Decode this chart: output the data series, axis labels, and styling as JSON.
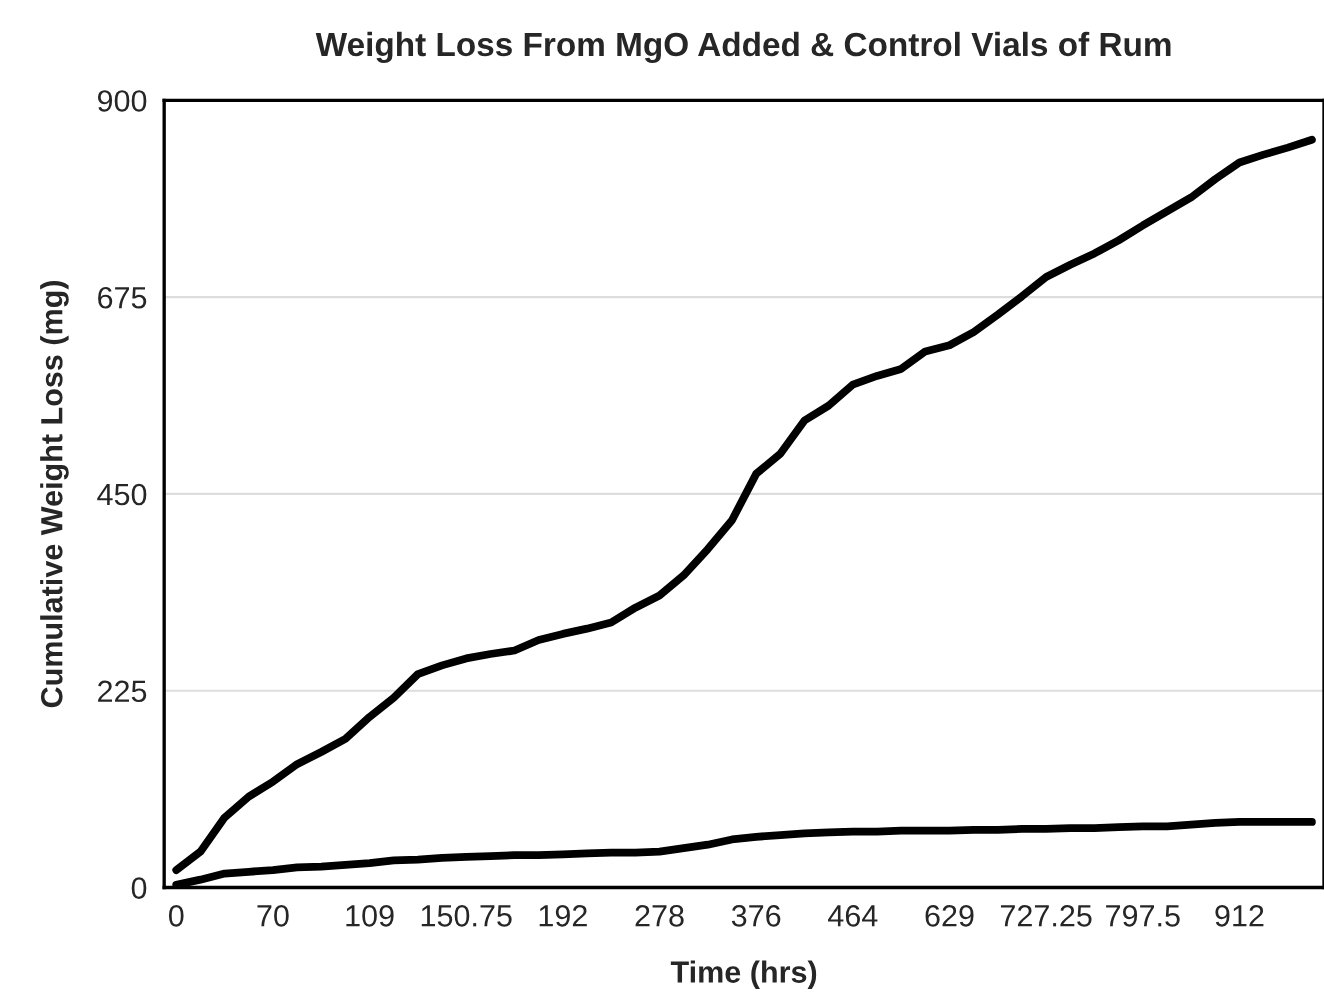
{
  "chart_data": {
    "type": "line",
    "title": "Weight Loss From MgO Added & Control Vials of Rum",
    "xlabel": "Time (hrs)",
    "ylabel": "Cumulative Weight Loss (mg)",
    "categories": [
      "0",
      null,
      null,
      null,
      "70",
      null,
      null,
      null,
      "109",
      null,
      null,
      null,
      "150.75",
      null,
      null,
      null,
      "192",
      null,
      null,
      null,
      "278",
      null,
      null,
      null,
      "376",
      null,
      null,
      null,
      "464",
      null,
      null,
      null,
      "629",
      null,
      null,
      null,
      "727.25",
      null,
      null,
      null,
      "797.5",
      null,
      null,
      null,
      "912",
      null,
      null,
      null
    ],
    "series": [
      {
        "color": "#000000",
        "values": [
          20,
          41,
          80,
          104,
          121,
          141,
          155,
          170,
          195,
          217,
          244,
          254,
          262,
          267,
          271,
          283,
          290,
          296,
          303,
          320,
          334,
          357,
          387,
          420,
          473,
          496,
          534,
          551,
          575,
          585,
          593,
          613,
          620,
          635,
          655,
          676,
          698,
          712,
          725,
          740,
          757,
          773,
          789,
          810,
          829,
          838,
          846,
          855
        ]
      },
      {
        "color": "#000000",
        "values": [
          3,
          9,
          16,
          18,
          20,
          23,
          24,
          26,
          28,
          31,
          32,
          34,
          35,
          36,
          37,
          37,
          38,
          39,
          40,
          40,
          41,
          45,
          49,
          55,
          58,
          60,
          62,
          63,
          64,
          64,
          65,
          65,
          65,
          66,
          66,
          67,
          67,
          68,
          68,
          69,
          70,
          70,
          72,
          74,
          75,
          75,
          75,
          75
        ]
      }
    ],
    "ylim": [
      0,
      900
    ],
    "yticks": [
      0,
      225,
      450,
      675,
      900
    ],
    "grid": "y",
    "marker": "none",
    "line_style": "solid"
  }
}
